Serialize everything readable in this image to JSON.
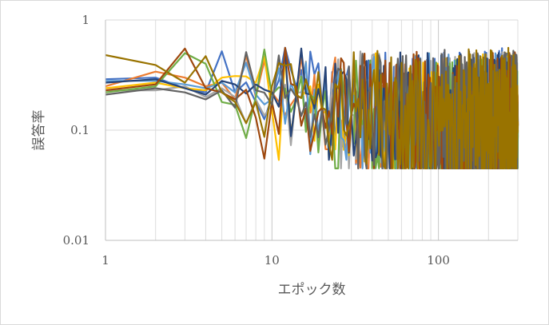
{
  "chart_data": {
    "type": "line",
    "xlabel": "エポック数",
    "ylabel": "誤答率",
    "x_scale": "log",
    "y_scale": "log",
    "xlim": [
      1,
      300
    ],
    "ylim": [
      0.01,
      1
    ],
    "x_ticks": [
      "1",
      "10",
      "100"
    ],
    "y_ticks": [
      "0.01",
      "0.1",
      "1"
    ],
    "grid": "vertical minor gridlines",
    "legend": "none",
    "series": [
      {
        "color": "#4472c4",
        "values": [
          [
            1,
            0.29
          ],
          [
            2,
            0.3
          ],
          [
            3,
            0.24
          ],
          [
            4,
            0.22
          ],
          [
            5,
            0.52
          ],
          [
            6,
            0.22
          ],
          [
            8,
            0.18
          ],
          [
            10,
            0.2
          ],
          [
            14,
            0.25
          ],
          [
            20,
            0.17
          ],
          [
            30,
            0.14
          ],
          [
            50,
            0.13
          ],
          [
            80,
            0.11
          ],
          [
            120,
            0.1
          ],
          [
            200,
            0.11
          ],
          [
            300,
            0.12
          ]
        ]
      },
      {
        "color": "#ed7d31",
        "values": [
          [
            1,
            0.25
          ],
          [
            2,
            0.34
          ],
          [
            3,
            0.3
          ],
          [
            4,
            0.25
          ],
          [
            5,
            0.27
          ],
          [
            6,
            0.19
          ],
          [
            8,
            0.2
          ],
          [
            10,
            0.22
          ],
          [
            14,
            0.2
          ],
          [
            20,
            0.15
          ],
          [
            30,
            0.13
          ],
          [
            50,
            0.12
          ],
          [
            80,
            0.1
          ],
          [
            120,
            0.09
          ],
          [
            200,
            0.085
          ],
          [
            300,
            0.09
          ]
        ]
      },
      {
        "color": "#a5a5a5",
        "values": [
          [
            1,
            0.23
          ],
          [
            2,
            0.23
          ],
          [
            3,
            0.25
          ],
          [
            4,
            0.2
          ],
          [
            5,
            0.24
          ],
          [
            6,
            0.2
          ],
          [
            8,
            0.19
          ],
          [
            10,
            0.17
          ],
          [
            14,
            0.22
          ],
          [
            20,
            0.16
          ],
          [
            30,
            0.14
          ],
          [
            50,
            0.12
          ],
          [
            80,
            0.11
          ],
          [
            120,
            0.1
          ],
          [
            200,
            0.1
          ],
          [
            300,
            0.11
          ]
        ]
      },
      {
        "color": "#ffc000",
        "values": [
          [
            1,
            0.24
          ],
          [
            2,
            0.27
          ],
          [
            3,
            0.24
          ],
          [
            4,
            0.23
          ],
          [
            5,
            0.3
          ],
          [
            6,
            0.31
          ],
          [
            8,
            0.27
          ],
          [
            10,
            0.15
          ],
          [
            14,
            0.2
          ],
          [
            20,
            0.14
          ],
          [
            30,
            0.13
          ],
          [
            50,
            0.12
          ],
          [
            80,
            0.11
          ],
          [
            120,
            0.1
          ],
          [
            200,
            0.1
          ],
          [
            300,
            0.1
          ]
        ]
      },
      {
        "color": "#5b9bd5",
        "values": [
          [
            1,
            0.28
          ],
          [
            2,
            0.28
          ],
          [
            3,
            0.26
          ],
          [
            4,
            0.24
          ],
          [
            5,
            0.27
          ],
          [
            6,
            0.22
          ],
          [
            8,
            0.21
          ],
          [
            10,
            0.19
          ],
          [
            14,
            0.2
          ],
          [
            20,
            0.16
          ],
          [
            30,
            0.13
          ],
          [
            50,
            0.12
          ],
          [
            80,
            0.12
          ],
          [
            120,
            0.1
          ],
          [
            200,
            0.1
          ],
          [
            300,
            0.11
          ]
        ]
      },
      {
        "color": "#70ad47",
        "values": [
          [
            1,
            0.22
          ],
          [
            2,
            0.25
          ],
          [
            3,
            0.5
          ],
          [
            4,
            0.4
          ],
          [
            5,
            0.18
          ],
          [
            6,
            0.17
          ],
          [
            8,
            0.2
          ],
          [
            10,
            0.21
          ],
          [
            14,
            0.19
          ],
          [
            20,
            0.15
          ],
          [
            30,
            0.13
          ],
          [
            50,
            0.12
          ],
          [
            80,
            0.11
          ],
          [
            120,
            0.1
          ],
          [
            200,
            0.09
          ],
          [
            300,
            0.1
          ]
        ]
      },
      {
        "color": "#264478",
        "values": [
          [
            1,
            0.27
          ],
          [
            2,
            0.29
          ],
          [
            3,
            0.24
          ],
          [
            4,
            0.21
          ],
          [
            5,
            0.28
          ],
          [
            6,
            0.26
          ],
          [
            8,
            0.26
          ],
          [
            10,
            0.22
          ],
          [
            14,
            0.21
          ],
          [
            20,
            0.16
          ],
          [
            30,
            0.14
          ],
          [
            50,
            0.13
          ],
          [
            80,
            0.11
          ],
          [
            120,
            0.1
          ],
          [
            200,
            0.1
          ],
          [
            300,
            0.11
          ]
        ]
      },
      {
        "color": "#9e480e",
        "values": [
          [
            1,
            0.23
          ],
          [
            2,
            0.26
          ],
          [
            3,
            0.55
          ],
          [
            4,
            0.24
          ],
          [
            5,
            0.22
          ],
          [
            6,
            0.19
          ],
          [
            8,
            0.13
          ],
          [
            10,
            0.18
          ],
          [
            14,
            0.25
          ],
          [
            20,
            0.16
          ],
          [
            30,
            0.14
          ],
          [
            50,
            0.13
          ],
          [
            80,
            0.11
          ],
          [
            120,
            0.1
          ],
          [
            200,
            0.1
          ],
          [
            300,
            0.11
          ]
        ]
      },
      {
        "color": "#636363",
        "values": [
          [
            1,
            0.21
          ],
          [
            2,
            0.24
          ],
          [
            3,
            0.22
          ],
          [
            4,
            0.19
          ],
          [
            5,
            0.23
          ],
          [
            6,
            0.16
          ],
          [
            8,
            0.23
          ],
          [
            10,
            0.17
          ],
          [
            14,
            0.2
          ],
          [
            20,
            0.15
          ],
          [
            30,
            0.14
          ],
          [
            50,
            0.13
          ],
          [
            80,
            0.12
          ],
          [
            120,
            0.11
          ],
          [
            200,
            0.1
          ],
          [
            300,
            0.11
          ]
        ]
      },
      {
        "color": "#997300",
        "values": [
          [
            1,
            0.48
          ],
          [
            2,
            0.39
          ],
          [
            3,
            0.27
          ],
          [
            4,
            0.47
          ],
          [
            5,
            0.22
          ],
          [
            6,
            0.18
          ],
          [
            8,
            0.18
          ],
          [
            10,
            0.25
          ],
          [
            14,
            0.21
          ],
          [
            20,
            0.16
          ],
          [
            30,
            0.14
          ],
          [
            50,
            0.13
          ],
          [
            80,
            0.12
          ],
          [
            120,
            0.11
          ],
          [
            200,
            0.11
          ],
          [
            300,
            0.12
          ]
        ]
      }
    ]
  }
}
